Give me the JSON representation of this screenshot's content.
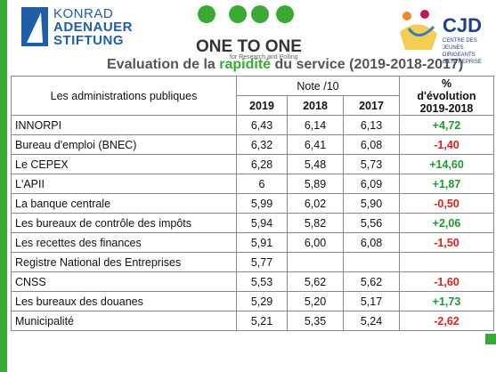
{
  "header": {
    "org": [
      "KONRAD",
      "ADENAUER",
      "STIFTUNG"
    ],
    "brand": "ONE TO ONE",
    "brand_sub": "for Research and Polling",
    "partner": "CJD",
    "partner_sub": [
      "CENTRE DES JEUNES",
      "DIRIGEANTS D'ENTREPRISE"
    ]
  },
  "title": [
    "Evaluation de la ",
    "rapidité",
    " du service (2019-2018-2017)"
  ],
  "table": {
    "head": {
      "label": "Les administrations publiques",
      "note": "Note /10",
      "years": [
        "2019",
        "2018",
        "2017"
      ],
      "pct": [
        "%",
        "d'évolution",
        "2019-2018"
      ]
    },
    "rows": [
      [
        "INNORPI",
        "6,43",
        "6,14",
        "6,13",
        "+4,72"
      ],
      [
        "Bureau d'emploi (BNEC)",
        "6,32",
        "6,41",
        "6,08",
        "-1,40"
      ],
      [
        "Le CEPEX",
        "6,28",
        "5,48",
        "5,73",
        "+14,60"
      ],
      [
        "L'APII",
        "6",
        "5,89",
        "6,09",
        "+1,87"
      ],
      [
        "La banque centrale",
        "5,99",
        "6,02",
        "5,90",
        "-0,50"
      ],
      [
        "Les bureaux de contrôle des impôts",
        "5,94",
        "5,82",
        "5,56",
        "+2,06"
      ],
      [
        "Les recettes des finances",
        "5,91",
        "6,00",
        "6,08",
        "-1,50"
      ],
      [
        "Registre National des Entreprises",
        "5,77",
        null,
        null,
        null
      ],
      [
        "CNSS",
        "5,53",
        "5,62",
        "5,62",
        "-1,60"
      ],
      [
        "Les bureaux des douanes",
        "5,29",
        "5,20",
        "5,17",
        "+1,73"
      ],
      [
        "Municipalité",
        "5,21",
        "5,35",
        "5,24",
        "-2,62"
      ]
    ]
  }
}
